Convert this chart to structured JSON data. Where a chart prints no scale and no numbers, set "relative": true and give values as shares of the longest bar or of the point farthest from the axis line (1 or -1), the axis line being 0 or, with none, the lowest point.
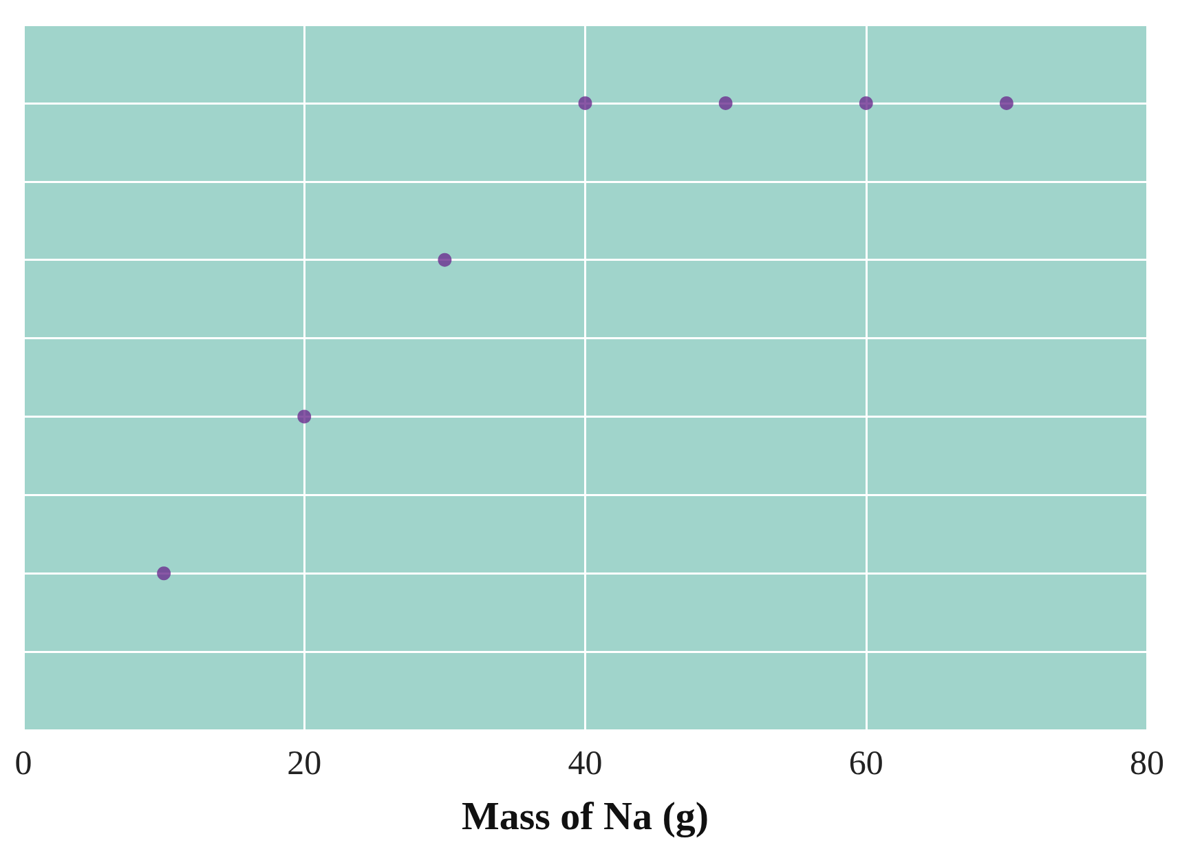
{
  "chart_data": {
    "type": "scatter",
    "xlabel": "Mass of Na (g)",
    "relative": true,
    "x": [
      10,
      20,
      30,
      40,
      50,
      60,
      70
    ],
    "values": [
      0.25,
      0.5,
      0.75,
      1,
      1,
      1,
      1
    ],
    "color": "#6b2d8f",
    "marker": "circle",
    "grid": true,
    "tick_labels": "x",
    "xlim": [
      0,
      80
    ],
    "xticks": [
      0,
      20,
      40,
      60,
      80
    ]
  }
}
